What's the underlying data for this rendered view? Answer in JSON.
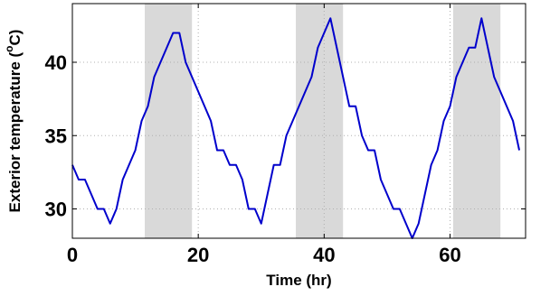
{
  "chart_data": {
    "type": "line",
    "xlabel": "Time (hr)",
    "ylabel_main": "Exterior temperature (",
    "ylabel_unit_sup": "o",
    "ylabel_unit": "C)",
    "xlim": [
      0,
      72
    ],
    "ylim": [
      28,
      44
    ],
    "xticks": [
      0,
      20,
      40,
      60
    ],
    "yticks": [
      30,
      35,
      40
    ],
    "grid": true,
    "line_color": "#0000cc",
    "shade_color": "#d9d9d9",
    "shaded_regions": [
      [
        11.5,
        19
      ],
      [
        35.5,
        43
      ],
      [
        60.5,
        68
      ]
    ],
    "series": [
      {
        "x": [
          0,
          1,
          2,
          3,
          4,
          5,
          6,
          7,
          8,
          9,
          10,
          11,
          12,
          13,
          14,
          15,
          16,
          17,
          18,
          19,
          20,
          21,
          22,
          23,
          24,
          25,
          26,
          27,
          28,
          29,
          30,
          31,
          32,
          33,
          34,
          35,
          36,
          37,
          38,
          39,
          40,
          41,
          42,
          43,
          44,
          45,
          46,
          47,
          48,
          49,
          50,
          51,
          52,
          53,
          54,
          55,
          56,
          57,
          58,
          59,
          60,
          61,
          62,
          63,
          64,
          65,
          66,
          67,
          68,
          69,
          70,
          71
        ],
        "values": [
          33,
          32,
          32,
          31,
          30,
          30,
          29,
          30,
          32,
          33,
          34,
          36,
          37,
          39,
          40,
          41,
          42,
          42,
          40,
          39,
          38,
          37,
          36,
          34,
          34,
          33,
          33,
          32,
          30,
          30,
          29,
          31,
          33,
          33,
          35,
          36,
          37,
          38,
          39,
          41,
          42,
          43,
          41,
          39,
          37,
          37,
          35,
          34,
          34,
          32,
          31,
          30,
          30,
          29,
          28,
          29,
          31,
          33,
          34,
          36,
          37,
          39,
          40,
          41,
          41,
          43,
          41,
          39,
          38,
          37,
          36,
          34
        ]
      }
    ]
  }
}
